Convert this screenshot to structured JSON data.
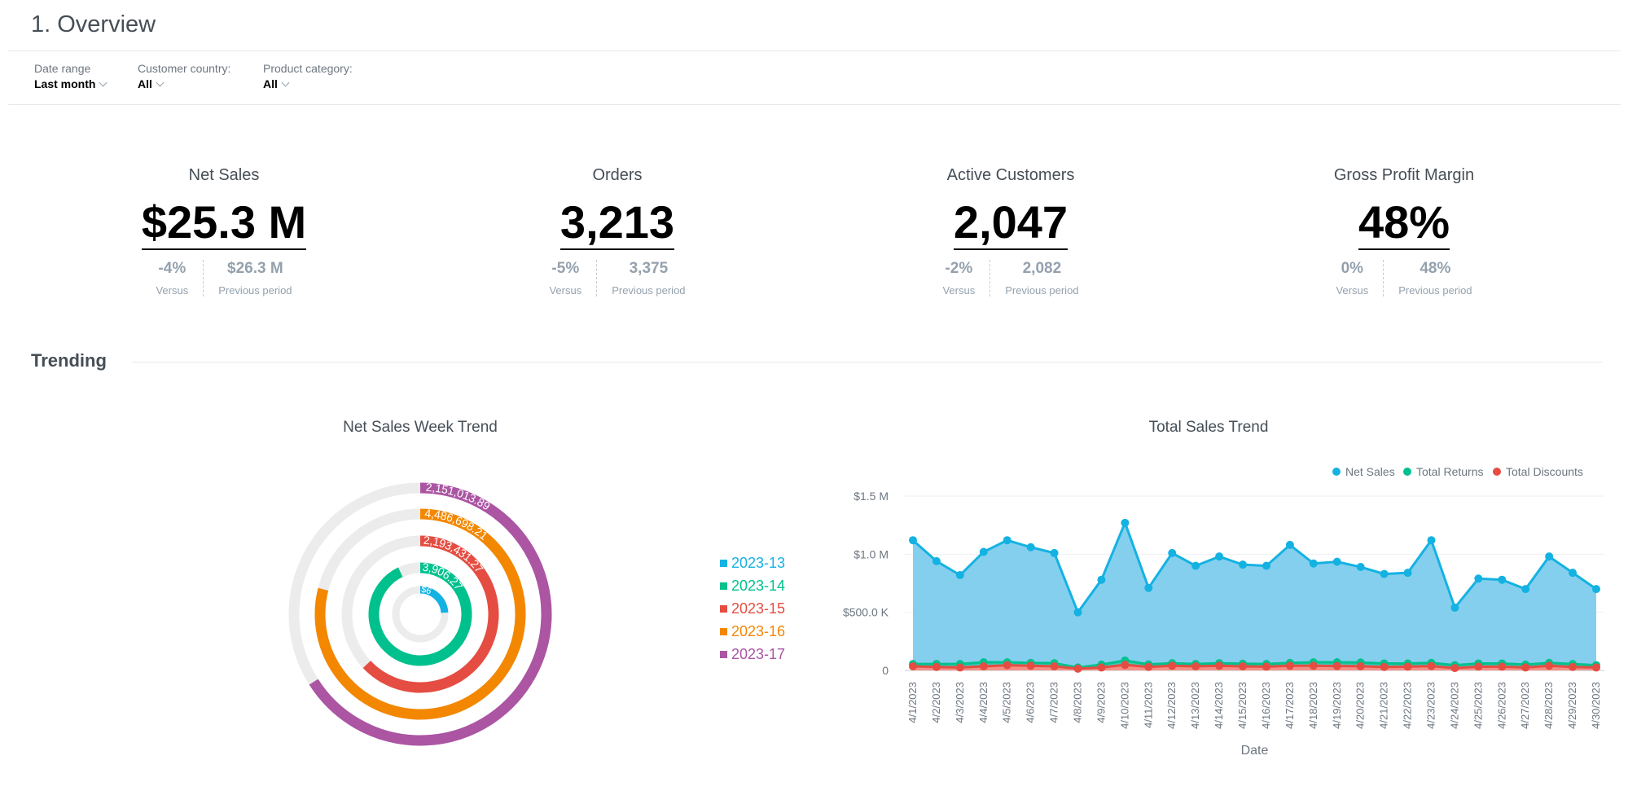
{
  "page": {
    "title": "1. Overview",
    "section_title": "Trending"
  },
  "filters": [
    {
      "label": "Date range",
      "value": "Last month"
    },
    {
      "label": "Customer country:",
      "value": "All"
    },
    {
      "label": "Product category:",
      "value": "All"
    }
  ],
  "kpis": [
    {
      "title": "Net Sales",
      "value": "$25.3 M",
      "change": "-4%",
      "change_label": "Versus",
      "previous": "$26.3 M",
      "previous_label": "Previous period"
    },
    {
      "title": "Orders",
      "value": "3,213",
      "change": "-5%",
      "change_label": "Versus",
      "previous": "3,375",
      "previous_label": "Previous period"
    },
    {
      "title": "Active Customers",
      "value": "2,047",
      "change": "-2%",
      "change_label": "Versus",
      "previous": "2,082",
      "previous_label": "Previous period"
    },
    {
      "title": "Gross Profit Margin",
      "value": "48%",
      "change": "0%",
      "change_label": "Versus",
      "previous": "48%",
      "previous_label": "Previous period"
    }
  ],
  "colors": {
    "week13": "#14b2e2",
    "week14": "#00c18d",
    "week15": "#e54d42",
    "week16": "#f38700",
    "week17": "#ab55a3",
    "track": "#ececec"
  },
  "chart_data": [
    {
      "type": "radial-bar",
      "title": "Net Sales Week Trend",
      "legend_position": "right",
      "categories": [
        "2023-13",
        "2023-14",
        "2023-15",
        "2023-16",
        "2023-17"
      ],
      "fractions": [
        0.24,
        0.93,
        0.63,
        0.79,
        0.66
      ],
      "labels": [
        "$6",
        "3,906.27",
        "2,193,431.27",
        "4,486,698.21",
        "2,151,013.89"
      ]
    },
    {
      "type": "area",
      "title": "Total Sales Trend",
      "xlabel": "Date",
      "ylabel": "",
      "ylim": [
        0,
        1500000
      ],
      "y_ticks": [
        "0",
        "$500.0 K",
        "$1.0 M",
        "$1.5 M"
      ],
      "y_tick_values": [
        0,
        500000,
        1000000,
        1500000
      ],
      "legend_position": "top-right",
      "x": [
        "4/1/2023",
        "4/2/2023",
        "4/3/2023",
        "4/4/2023",
        "4/5/2023",
        "4/6/2023",
        "4/7/2023",
        "4/8/2023",
        "4/9/2023",
        "4/10/2023",
        "4/11/2023",
        "4/12/2023",
        "4/13/2023",
        "4/14/2023",
        "4/15/2023",
        "4/16/2023",
        "4/17/2023",
        "4/18/2023",
        "4/19/2023",
        "4/20/2023",
        "4/21/2023",
        "4/22/2023",
        "4/23/2023",
        "4/24/2023",
        "4/25/2023",
        "4/26/2023",
        "4/27/2023",
        "4/28/2023",
        "4/29/2023",
        "4/30/2023"
      ],
      "series": [
        {
          "name": "Net Sales",
          "color": "#14b2e2",
          "fill": "#85cfee",
          "values": [
            1120000,
            940000,
            820000,
            1020000,
            1120000,
            1060000,
            1010000,
            500000,
            780000,
            1270000,
            710000,
            1010000,
            900000,
            980000,
            910000,
            900000,
            1080000,
            920000,
            935000,
            890000,
            830000,
            840000,
            1120000,
            540000,
            790000,
            780000,
            700000,
            980000,
            840000,
            700000
          ]
        },
        {
          "name": "Total Returns",
          "color": "#00c18d",
          "fill": "#00c18d",
          "values": [
            55000,
            55000,
            55000,
            70000,
            70000,
            65000,
            62000,
            25000,
            50000,
            85000,
            52000,
            62000,
            55000,
            62000,
            58000,
            55000,
            65000,
            70000,
            70000,
            68000,
            60000,
            60000,
            65000,
            45000,
            60000,
            60000,
            50000,
            65000,
            55000,
            45000
          ]
        },
        {
          "name": "Total Discounts",
          "color": "#e54d42",
          "fill": "#f48f86",
          "values": [
            35000,
            30000,
            25000,
            35000,
            45000,
            40000,
            35000,
            15000,
            25000,
            48000,
            30000,
            40000,
            35000,
            40000,
            35000,
            32000,
            40000,
            40000,
            38000,
            36000,
            30000,
            32000,
            38000,
            20000,
            32000,
            32000,
            25000,
            40000,
            30000,
            25000
          ]
        }
      ]
    }
  ]
}
